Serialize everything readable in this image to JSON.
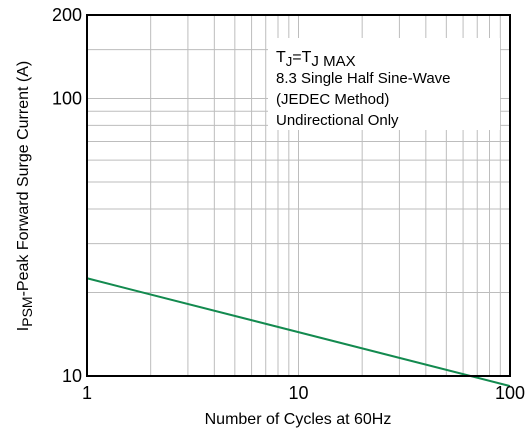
{
  "chart_data": {
    "type": "line",
    "xscale": "log",
    "yscale": "log",
    "xlim": [
      1,
      100
    ],
    "ylim": [
      10,
      200
    ],
    "xticks": [
      {
        "value": 1,
        "label": "1"
      },
      {
        "value": 10,
        "label": "10"
      },
      {
        "value": 100,
        "label": "100"
      }
    ],
    "yticks": [
      {
        "value": 10,
        "label": "10"
      },
      {
        "value": 100,
        "label": "100"
      },
      {
        "value": 200,
        "label": "200"
      }
    ],
    "xlabel": "Number of Cycles at 60Hz",
    "ylabel": {
      "main": "I",
      "sub": "PSM",
      "rest": "-Peak Forward Surge Current (A)"
    },
    "annotation": {
      "line1": {
        "t1": "T",
        "s1": "J",
        "mid": "=T",
        "s2": "J MAX"
      },
      "line2": "8.3 Single Half Sine-Wave",
      "line3": "(JEDEC Method)",
      "line4": "Undirectional Only"
    },
    "grid": true,
    "series": [
      {
        "color": "#138a4f",
        "x": [
          1,
          100
        ],
        "y": [
          22.5,
          9.2
        ]
      }
    ]
  }
}
